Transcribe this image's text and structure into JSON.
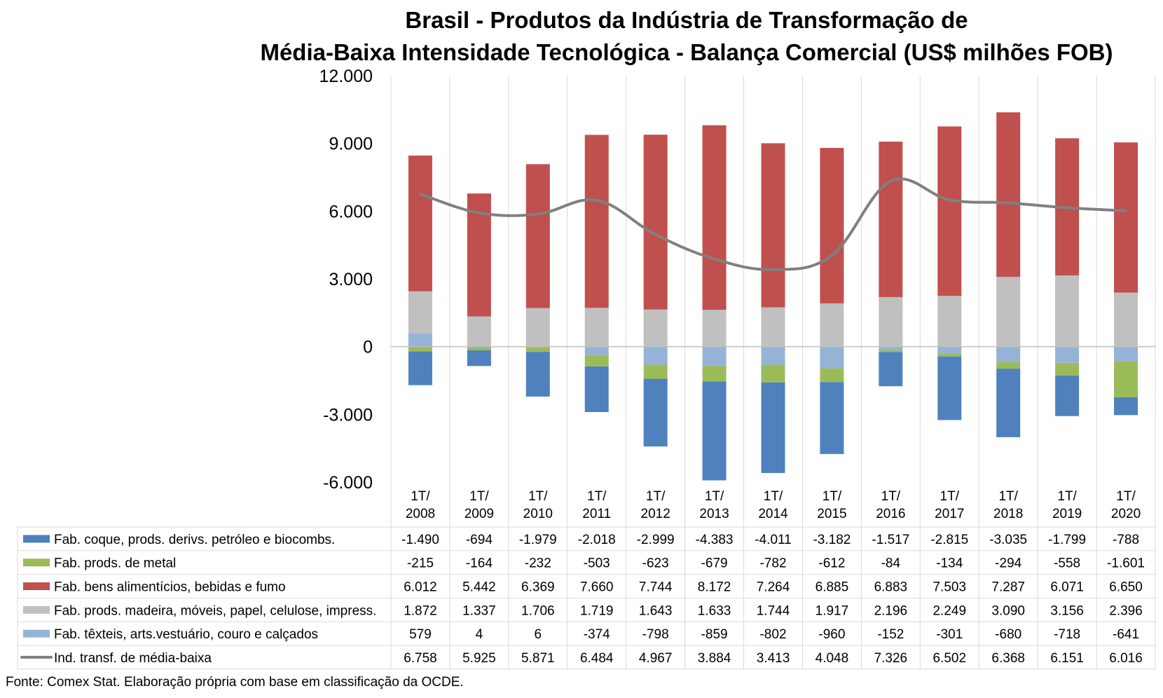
{
  "chart_data": {
    "type": "bar",
    "stacked": true,
    "title": "Brasil - Produtos da Indústria de Transformação de",
    "subtitle": "Média-Baixa Intensidade Tecnológica - Balança Comercial (US$ milhões FOB)",
    "ylim": [
      -6000,
      12000
    ],
    "yticks": [
      -6000,
      -3000,
      0,
      3000,
      6000,
      9000,
      12000
    ],
    "ytick_labels": [
      "-6.000",
      "-3.000",
      "0",
      "3.000",
      "6.000",
      "9.000",
      "12.000"
    ],
    "grid": "vertical category separators",
    "legend": "data table below chart",
    "categories": [
      [
        "1T/",
        "2008"
      ],
      [
        "1T/",
        "2009"
      ],
      [
        "1T/",
        "2010"
      ],
      [
        "1T/",
        "2011"
      ],
      [
        "1T/",
        "2012"
      ],
      [
        "1T/",
        "2013"
      ],
      [
        "1T/",
        "2014"
      ],
      [
        "1T/",
        "2015"
      ],
      [
        "1T/",
        "2016"
      ],
      [
        "1T/",
        "2017"
      ],
      [
        "1T/",
        "2018"
      ],
      [
        "1T/",
        "2019"
      ],
      [
        "1T/",
        "2020"
      ]
    ],
    "series": [
      {
        "name": "Fab. coque, prods. derivs. petróleo e biocombs.",
        "kind": "bar",
        "color": "#4f81bd",
        "values": [
          -1490,
          -694,
          -1979,
          -2018,
          -2999,
          -4383,
          -4011,
          -3182,
          -1517,
          -2815,
          -3035,
          -1799,
          -788
        ],
        "labels": [
          "-1.490",
          "-694",
          "-1.979",
          "-2.018",
          "-2.999",
          "-4.383",
          "-4.011",
          "-3.182",
          "-1.517",
          "-2.815",
          "-3.035",
          "-1.799",
          "-788"
        ]
      },
      {
        "name": "Fab. prods. de metal",
        "kind": "bar",
        "color": "#9bbb59",
        "values": [
          -215,
          -164,
          -232,
          -503,
          -623,
          -679,
          -782,
          -612,
          -84,
          -134,
          -294,
          -558,
          -1601
        ],
        "labels": [
          "-215",
          "-164",
          "-232",
          "-503",
          "-623",
          "-679",
          "-782",
          "-612",
          "-84",
          "-134",
          "-294",
          "-558",
          "-1.601"
        ]
      },
      {
        "name": "Fab. bens alimentícios, bebidas e fumo",
        "kind": "bar",
        "color": "#c0504d",
        "values": [
          6012,
          5442,
          6369,
          7660,
          7744,
          8172,
          7264,
          6885,
          6883,
          7503,
          7287,
          6071,
          6650
        ],
        "labels": [
          "6.012",
          "5.442",
          "6.369",
          "7.660",
          "7.744",
          "8.172",
          "7.264",
          "6.885",
          "6.883",
          "7.503",
          "7.287",
          "6.071",
          "6.650"
        ]
      },
      {
        "name": "Fab. prods. madeira, móveis, papel, celulose, impress.",
        "kind": "bar",
        "color": "#c0c0c0",
        "values": [
          1872,
          1337,
          1706,
          1719,
          1643,
          1633,
          1744,
          1917,
          2196,
          2249,
          3090,
          3156,
          2396
        ],
        "labels": [
          "1.872",
          "1.337",
          "1.706",
          "1.719",
          "1.643",
          "1.633",
          "1.744",
          "1.917",
          "2.196",
          "2.249",
          "3.090",
          "3.156",
          "2.396"
        ]
      },
      {
        "name": "Fab. têxteis, arts.vestuário, couro e calçados",
        "kind": "bar",
        "color": "#95b3d7",
        "values": [
          579,
          4,
          6,
          -374,
          -798,
          -859,
          -802,
          -960,
          -152,
          -301,
          -680,
          -718,
          -641
        ],
        "labels": [
          "579",
          "4",
          "6",
          "-374",
          "-798",
          "-859",
          "-802",
          "-960",
          "-152",
          "-301",
          "-680",
          "-718",
          "-641"
        ]
      },
      {
        "name": "Ind. transf. de média-baixa",
        "kind": "line",
        "color": "#808080",
        "values": [
          6758,
          5925,
          5871,
          6484,
          4967,
          3884,
          3413,
          4048,
          7326,
          6502,
          6368,
          6151,
          6016
        ],
        "labels": [
          "6.758",
          "5.925",
          "5.871",
          "6.484",
          "4.967",
          "3.884",
          "3.413",
          "4.048",
          "7.326",
          "6.502",
          "6.368",
          "6.151",
          "6.016"
        ]
      }
    ]
  },
  "source_note": "Fonte: Comex Stat. Elaboração própria com base em classificação da OCDE."
}
